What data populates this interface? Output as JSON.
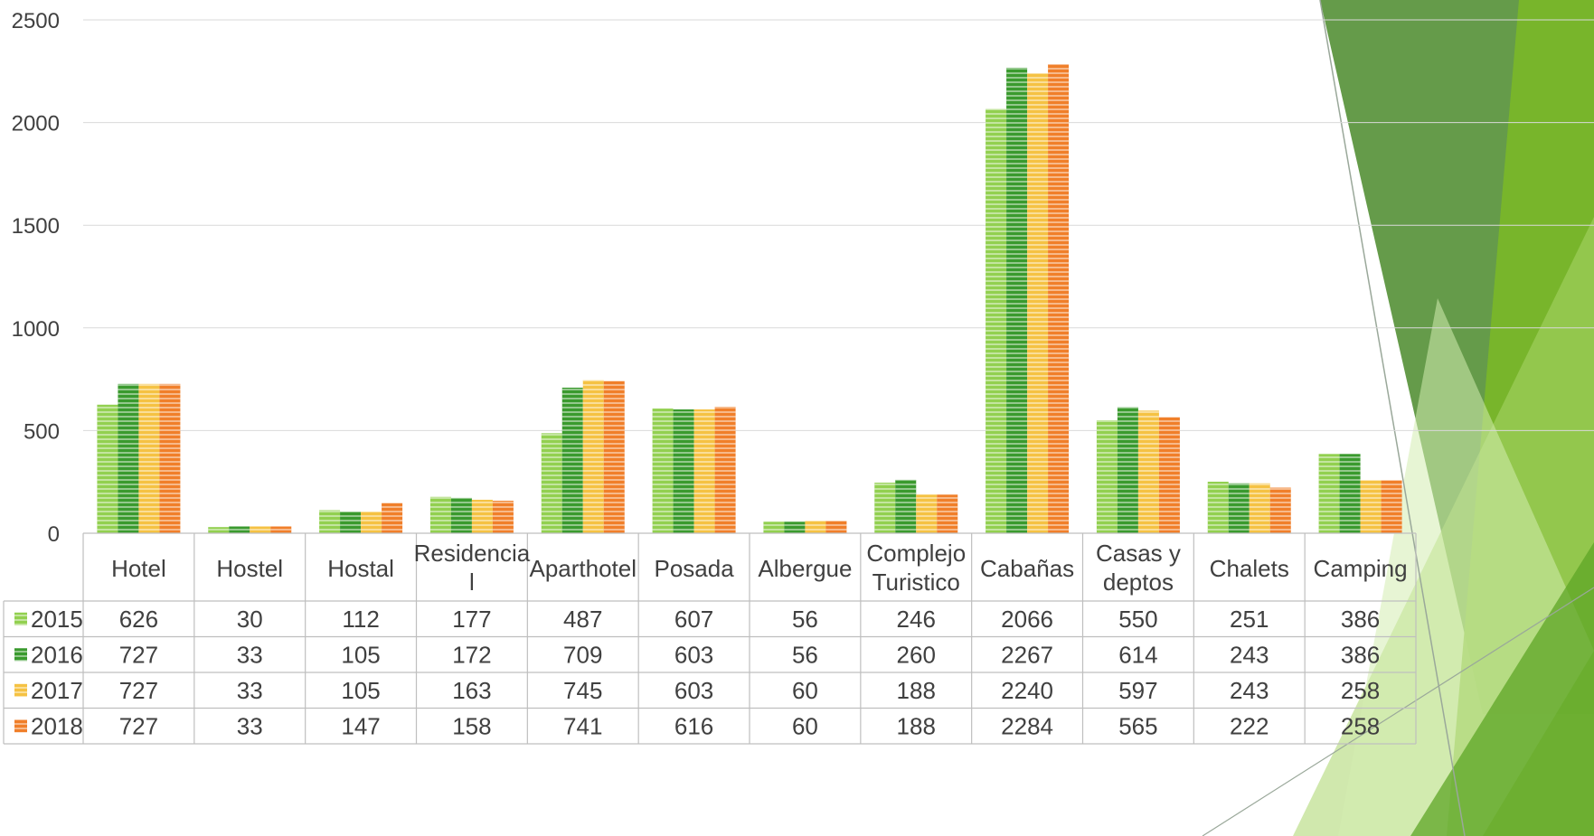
{
  "chart_data": {
    "type": "bar",
    "categories": [
      "Hotel",
      "Hostel",
      "Hostal",
      "Residencia\nl",
      "Aparthotel",
      "Posada",
      "Albergue",
      "Complejo\nTuristico",
      "Cabañas",
      "Casas y\ndeptos",
      "Chalets",
      "Camping"
    ],
    "series": [
      {
        "name": "2015",
        "color": "#92d050",
        "values": [
          626,
          30,
          112,
          177,
          487,
          607,
          56,
          246,
          2066,
          550,
          251,
          386
        ]
      },
      {
        "name": "2016",
        "color": "#3a9a2e",
        "values": [
          727,
          33,
          105,
          172,
          709,
          603,
          56,
          260,
          2267,
          614,
          243,
          386
        ]
      },
      {
        "name": "2017",
        "color": "#f5c243",
        "values": [
          727,
          33,
          105,
          163,
          745,
          603,
          60,
          188,
          2240,
          597,
          243,
          258
        ]
      },
      {
        "name": "2018",
        "color": "#f07f2a",
        "values": [
          727,
          33,
          147,
          158,
          741,
          616,
          60,
          188,
          2284,
          565,
          222,
          258
        ]
      }
    ],
    "yticks": [
      0,
      500,
      1000,
      1500,
      2000,
      2500
    ],
    "ylim": [
      0,
      2500
    ],
    "grid": true,
    "legend": "data-table-left",
    "data_table": true
  }
}
